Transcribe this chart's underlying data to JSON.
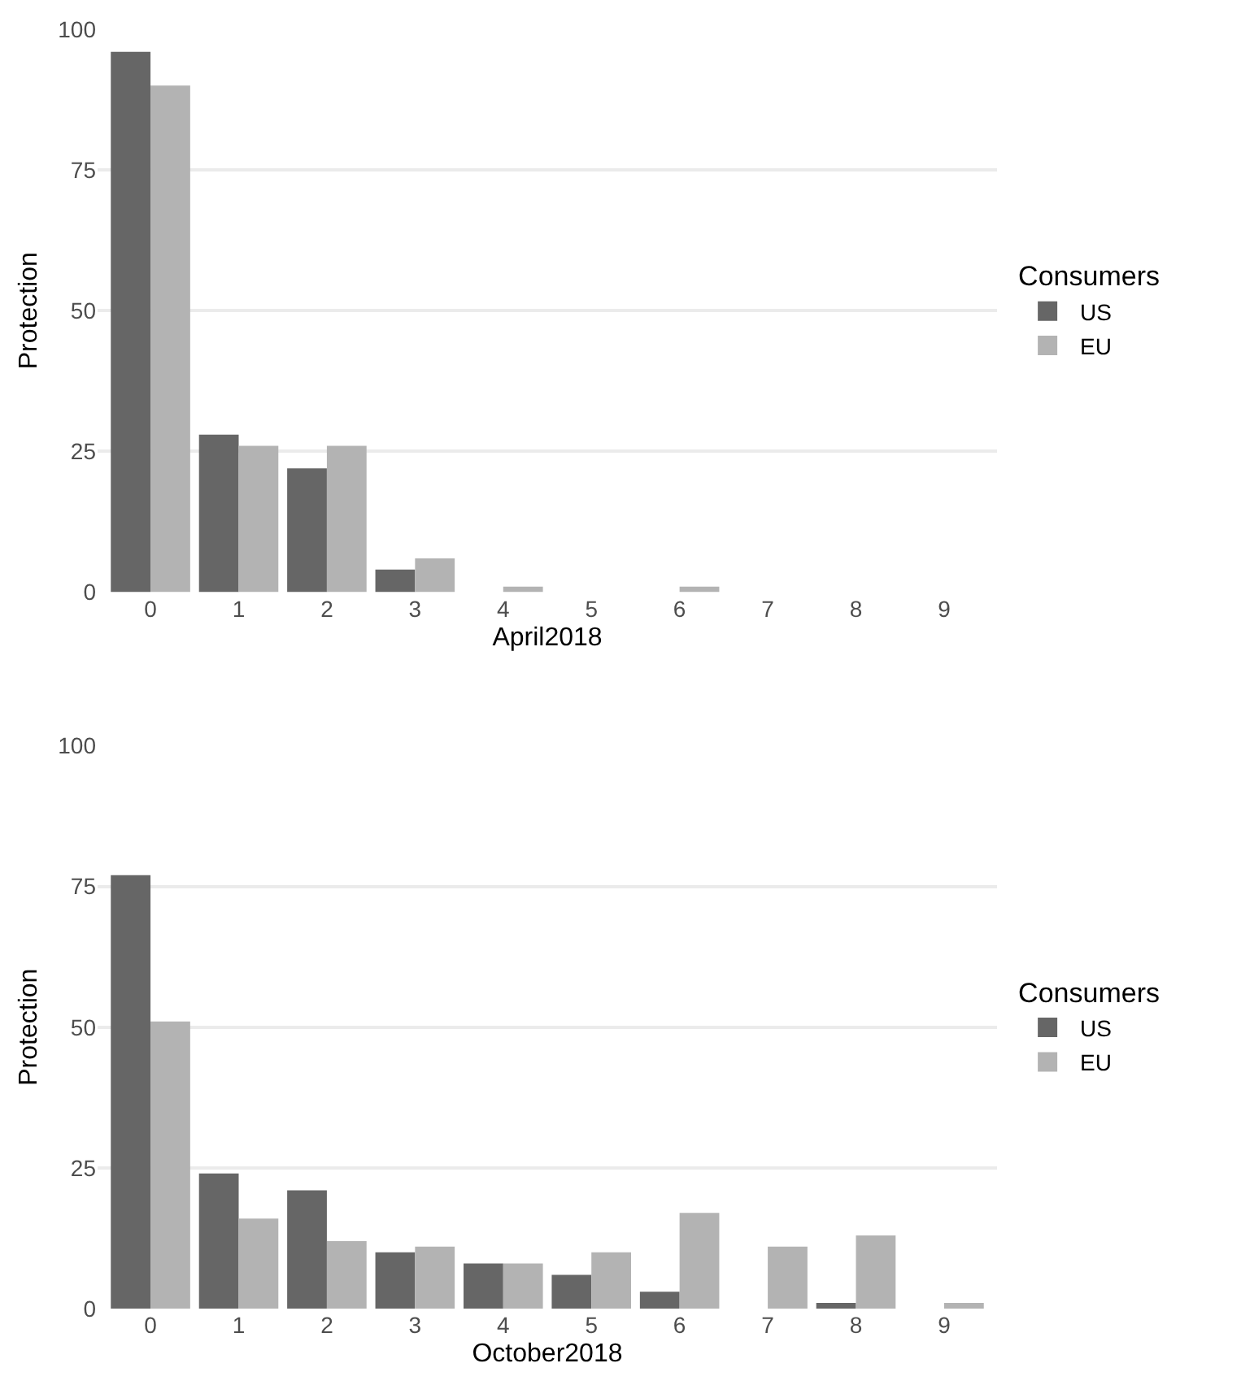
{
  "chart_data": [
    {
      "type": "bar",
      "xlabel": "April2018",
      "ylabel": "Protection",
      "legend_title": "Consumers",
      "legend": "right",
      "grid": "y",
      "categories": [
        "0",
        "1",
        "2",
        "3",
        "4",
        "5",
        "6",
        "7",
        "8",
        "9"
      ],
      "ylim": [
        0,
        100
      ],
      "yticks": [
        0,
        25,
        50,
        75,
        100
      ],
      "series": [
        {
          "name": "US",
          "color": "#666666",
          "values": [
            96,
            28,
            22,
            4,
            0,
            0,
            0,
            0,
            0,
            0
          ]
        },
        {
          "name": "EU",
          "color": "#b3b3b3",
          "values": [
            90,
            26,
            26,
            6,
            1,
            0,
            1,
            0,
            0,
            0
          ]
        }
      ]
    },
    {
      "type": "bar",
      "xlabel": "October2018",
      "ylabel": "Protection",
      "legend_title": "Consumers",
      "legend": "right",
      "grid": "y",
      "categories": [
        "0",
        "1",
        "2",
        "3",
        "4",
        "5",
        "6",
        "7",
        "8",
        "9"
      ],
      "ylim": [
        0,
        100
      ],
      "yticks": [
        0,
        25,
        50,
        75,
        100
      ],
      "series": [
        {
          "name": "US",
          "color": "#666666",
          "values": [
            77,
            24,
            21,
            10,
            8,
            6,
            3,
            0,
            1,
            0
          ]
        },
        {
          "name": "EU",
          "color": "#b3b3b3",
          "values": [
            51,
            16,
            12,
            11,
            8,
            10,
            17,
            11,
            13,
            1
          ]
        }
      ]
    }
  ]
}
